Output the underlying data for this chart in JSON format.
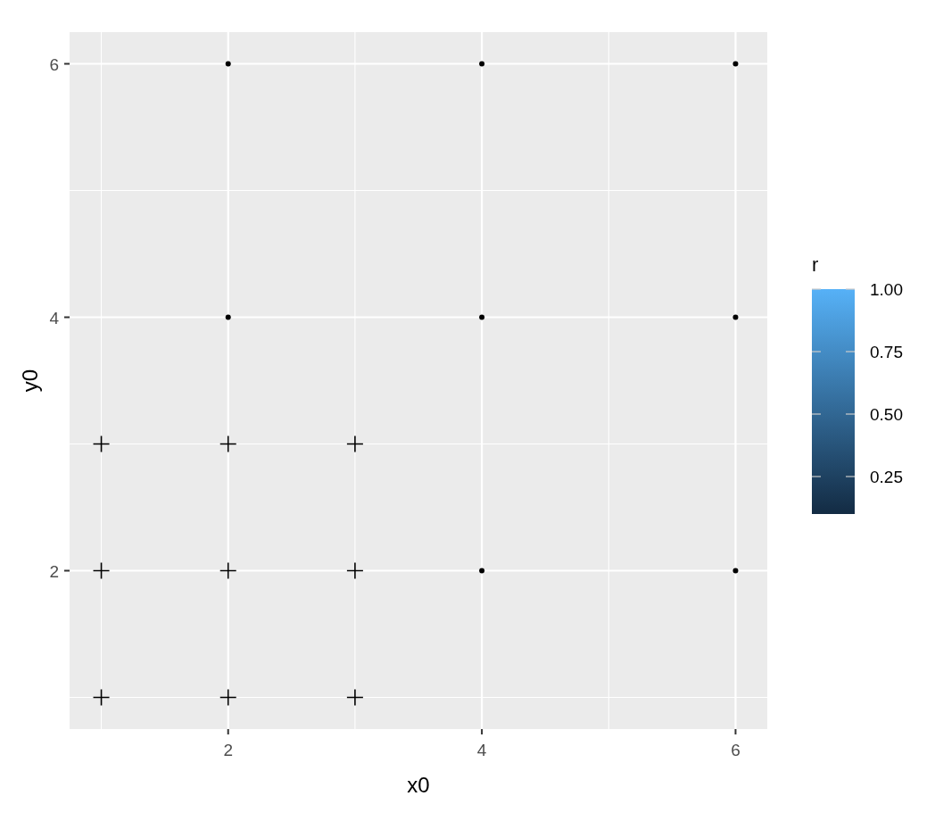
{
  "chart_data": {
    "type": "scatter",
    "xlabel": "x0",
    "ylabel": "y0",
    "clabel": "r",
    "xlim": [
      0.75,
      6.25
    ],
    "ylim": [
      0.75,
      6.25
    ],
    "xticks": [
      2,
      4,
      6
    ],
    "yticks": [
      2,
      4,
      6
    ],
    "grid": true,
    "clim": [
      0.1,
      1.0
    ],
    "cticks": [
      {
        "value": 0.25,
        "label": "0.25"
      },
      {
        "value": 0.5,
        "label": "0.50"
      },
      {
        "value": 0.75,
        "label": "0.75"
      },
      {
        "value": 1.0,
        "label": "1.00"
      }
    ],
    "series": [
      {
        "color": "#000000",
        "marker": "cross",
        "x": [
          1,
          2,
          3,
          1,
          2,
          3,
          1,
          2,
          3
        ],
        "values": [
          1,
          1,
          1,
          2,
          2,
          2,
          3,
          3,
          3
        ]
      },
      {
        "color": "#000000",
        "marker": "circle",
        "x": [
          4,
          6,
          2,
          4,
          6,
          2,
          4,
          6
        ],
        "values": [
          2,
          2,
          4,
          4,
          4,
          6,
          6,
          6
        ]
      }
    ]
  }
}
